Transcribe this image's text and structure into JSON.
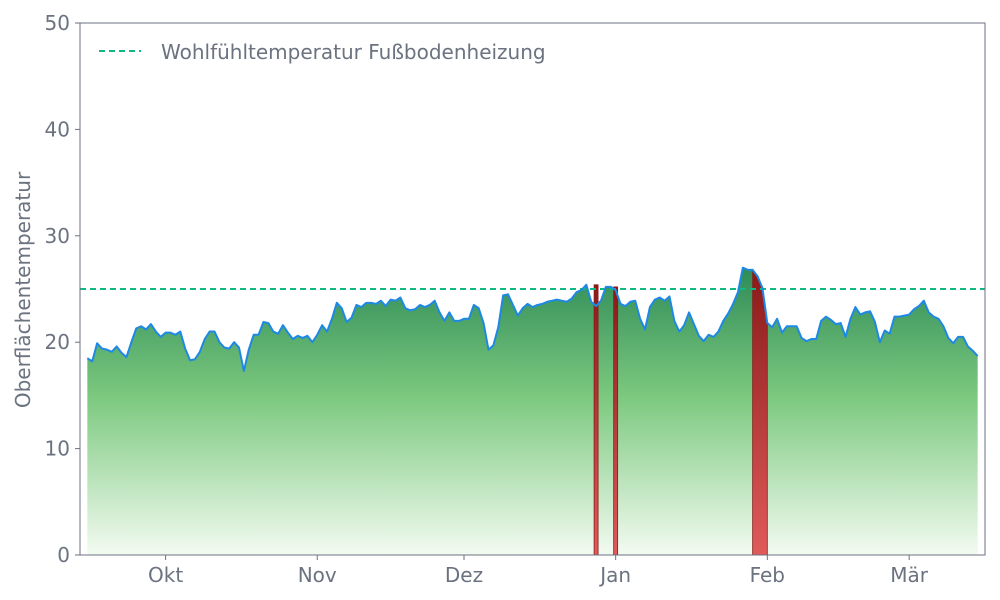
{
  "chart_data": {
    "type": "area",
    "title": "",
    "xlabel": "",
    "ylabel": "Oberflächentemperatur",
    "ylim": [
      0,
      50
    ],
    "yticks": [
      0,
      10,
      20,
      30,
      40,
      50
    ],
    "grid": false,
    "x_start": "2023-09-15",
    "x_ticks": [
      {
        "date": "2023-10-01",
        "label": "Okt"
      },
      {
        "date": "2023-11-01",
        "label": "Nov"
      },
      {
        "date": "2023-12-01",
        "label": "Dez"
      },
      {
        "date": "2024-01-01",
        "label": "Jan"
      },
      {
        "date": "2024-02-01",
        "label": "Feb"
      },
      {
        "date": "2024-03-01",
        "label": "Mär"
      }
    ],
    "threshold": {
      "value": 25,
      "label": "Wohlfühltemperatur Fußbodenheizung",
      "color": "#10b981",
      "style": "dashed"
    },
    "legend_position": "top-left",
    "colors": {
      "line": "#1e88e5",
      "fill_top": "#2e8b57",
      "fill_mid": "#7cc97f",
      "fill_bottom": "#f3fbf1",
      "above_threshold_top": "#8b1a1a",
      "above_threshold_bottom": "#e05a5a",
      "axis": "#6b7280"
    },
    "series": [
      {
        "values": [
          18.5,
          18.2,
          19.9,
          19.4,
          19.3,
          19.1,
          19.6,
          19.0,
          18.6,
          20.0,
          21.3,
          21.5,
          21.2,
          21.7,
          21.0,
          20.5,
          20.9,
          20.9,
          20.7,
          21.0,
          19.4,
          18.3,
          18.4,
          19.1,
          20.3,
          21.0,
          21.0,
          20.0,
          19.5,
          19.4,
          20.0,
          19.5,
          17.3,
          19.3,
          20.7,
          20.7,
          21.9,
          21.8,
          21.0,
          20.8,
          21.6,
          20.9,
          20.3,
          20.6,
          20.4,
          20.6,
          20.0,
          20.7,
          21.6,
          21.0,
          22.2,
          23.7,
          23.2,
          21.9,
          22.3,
          23.5,
          23.3,
          23.7,
          23.7,
          23.6,
          23.9,
          23.4,
          24.0,
          23.9,
          24.2,
          23.2,
          23.0,
          23.1,
          23.5,
          23.3,
          23.5,
          23.9,
          22.8,
          22.0,
          22.8,
          22.0,
          22.0,
          22.2,
          22.2,
          23.5,
          23.2,
          21.8,
          19.3,
          19.7,
          21.4,
          24.4,
          24.5,
          23.5,
          22.5,
          23.2,
          23.6,
          23.3,
          23.5,
          23.6,
          23.8,
          23.9,
          24.0,
          23.9,
          23.8,
          24.1,
          24.7,
          24.9,
          25.4,
          23.8,
          23.4,
          23.9,
          25.2,
          25.2,
          24.9,
          23.6,
          23.4,
          23.8,
          23.9,
          22.2,
          21.2,
          23.3,
          24.0,
          24.2,
          23.9,
          24.3,
          22.0,
          21.0,
          21.6,
          22.8,
          21.7,
          20.6,
          20.1,
          20.7,
          20.5,
          21.0,
          22.0,
          22.7,
          23.6,
          24.7,
          27.0,
          26.8,
          26.8,
          26.2,
          25.1,
          21.8,
          21.4,
          22.2,
          20.9,
          21.5,
          21.5,
          21.5,
          20.4,
          20.1,
          20.3,
          20.3,
          22.0,
          22.4,
          22.1,
          21.7,
          21.8,
          20.5,
          22.2,
          23.3,
          22.6,
          22.8,
          22.9,
          21.9,
          20.0,
          21.1,
          20.8,
          22.4,
          22.4,
          22.5,
          22.6,
          23.1,
          23.4,
          23.9,
          22.8,
          22.4,
          22.2,
          21.5,
          20.4,
          19.9,
          20.5,
          20.5,
          19.6,
          19.2,
          18.7
        ]
      }
    ],
    "above_threshold_regions": [
      {
        "start": "2023-12-28",
        "end": "2023-12-28",
        "peak": 25.4
      },
      {
        "start": "2024-01-01",
        "end": "2024-01-01",
        "peak": 25.2
      },
      {
        "start": "2024-01-29",
        "end": "2024-02-01",
        "peak": 27.0
      }
    ]
  }
}
